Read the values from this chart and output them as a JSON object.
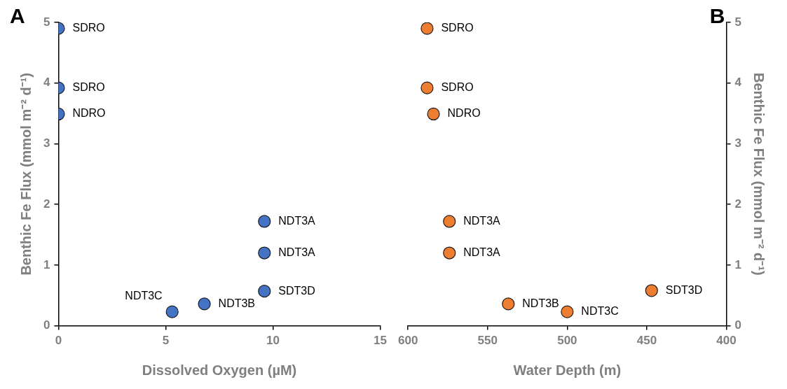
{
  "chart_data": [
    {
      "type": "scatter",
      "title": "A",
      "xlabel": "Dissolved Oxygen (µM)",
      "ylabel": "Benthic Fe Flux (mmol m⁻² d⁻¹)",
      "x": [
        0,
        0,
        0,
        9.6,
        9.6,
        9.6,
        5.3,
        6.8
      ],
      "series": [
        {
          "color": "#4472c4",
          "values": [
            4.9,
            3.92,
            3.49,
            1.72,
            1.2,
            0.57,
            0.23,
            0.36
          ]
        }
      ],
      "xlim": [
        0,
        15
      ],
      "xticks": [
        0,
        5,
        10,
        15
      ],
      "ylim": [
        0,
        5
      ],
      "yticks": [
        0,
        1,
        2,
        3,
        4,
        5
      ],
      "grid": false,
      "legend": false,
      "marker": "circle",
      "annotations": [
        {
          "text": "SDRO",
          "x": 0,
          "y": 4.9
        },
        {
          "text": "SDRO",
          "x": 0,
          "y": 3.92
        },
        {
          "text": "NDRO",
          "x": 0,
          "y": 3.49
        },
        {
          "text": "NDT3A",
          "x": 9.6,
          "y": 1.72
        },
        {
          "text": "NDT3A",
          "x": 9.6,
          "y": 1.2
        },
        {
          "text": "SDT3D",
          "x": 9.6,
          "y": 0.57
        },
        {
          "text": "NDT3C",
          "x": 5.3,
          "y": 0.23
        },
        {
          "text": "NDT3B",
          "x": 6.8,
          "y": 0.36
        }
      ]
    },
    {
      "type": "scatter",
      "title": "B",
      "xlabel": "Water Depth (m)",
      "y2label": "Benthic Fe Flux (mmol m⁻² d⁻¹)",
      "x": [
        588,
        588,
        584,
        574,
        574,
        537,
        500,
        447
      ],
      "series": [
        {
          "color": "#ed7d31",
          "axis": "y2",
          "values": [
            4.9,
            3.92,
            3.49,
            1.72,
            1.2,
            0.36,
            0.23,
            0.58
          ]
        }
      ],
      "xlim": [
        600,
        400
      ],
      "xticks": [
        600,
        550,
        500,
        450,
        400
      ],
      "y2lim": [
        0,
        5
      ],
      "y2ticks": [
        0,
        1,
        2,
        3,
        4,
        5
      ],
      "grid": false,
      "legend": false,
      "marker": "circle",
      "annotations": [
        "SDRO",
        "SDRO",
        "NDRO",
        "NDT3A",
        "NDT3A",
        "NDT3B",
        "NDT3C",
        "SDT3D"
      ]
    }
  ]
}
